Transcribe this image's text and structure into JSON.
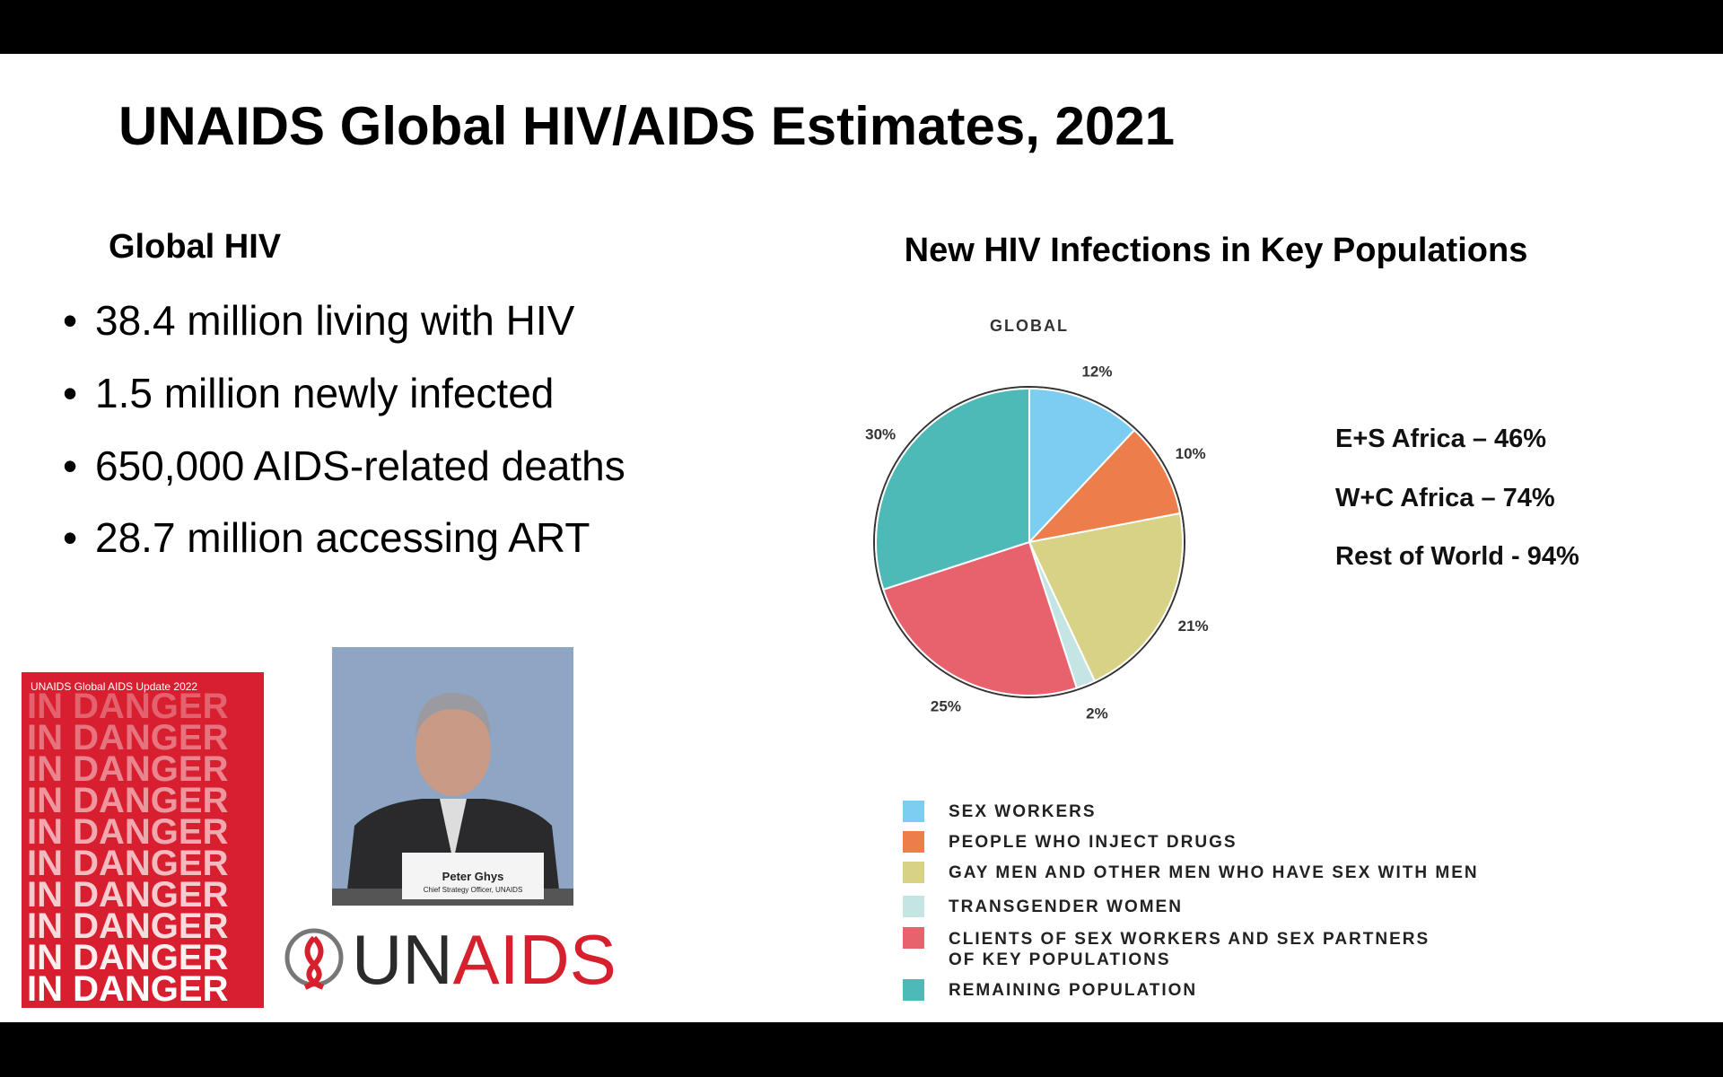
{
  "slide": {
    "title": "UNAIDS Global HIV/AIDS Estimates, 2021",
    "section_heading": "Global HIV",
    "bullets": [
      "38.4 million living with HIV",
      "1.5 million newly infected",
      "650,000 AIDS-related deaths",
      "28.7 million accessing ART"
    ],
    "regional_stats": [
      "E+S Africa – 46%",
      "W+C Africa – 74%",
      "Rest of World - 94%"
    ],
    "cover": {
      "title": "UNAIDS Global AIDS Update 2022",
      "lines": [
        "IN DANGER",
        "IN DANGER",
        "IN DANGER",
        "IN DANGER",
        "IN DANGER",
        "IN DANGER",
        "IN DANGER",
        "IN DANGER",
        "IN DANGER",
        "IN DANGER"
      ]
    },
    "photo": {
      "name": "Peter Ghys",
      "role": "Chief Strategy Officer, UNAIDS"
    },
    "logo": {
      "part1": "UN",
      "part2": "AIDS"
    }
  },
  "chart_data": {
    "type": "pie",
    "title": "New HIV Infections in Key Populations",
    "subtitle": "GLOBAL",
    "categories": [
      "SEX WORKERS",
      "PEOPLE WHO INJECT DRUGS",
      "GAY MEN AND OTHER MEN WHO HAVE SEX WITH MEN",
      "TRANSGENDER WOMEN",
      "CLIENTS OF SEX WORKERS AND SEX PARTNERS OF KEY POPULATIONS",
      "REMAINING POPULATION"
    ],
    "values": [
      12,
      10,
      21,
      2,
      25,
      30
    ],
    "value_labels": [
      "12%",
      "10%",
      "21%",
      "2%",
      "25%",
      "30%"
    ],
    "colors": [
      "#7ccdf1",
      "#ee7d4c",
      "#d8d286",
      "#c4e5e4",
      "#e8626e",
      "#4dbab8"
    ]
  }
}
